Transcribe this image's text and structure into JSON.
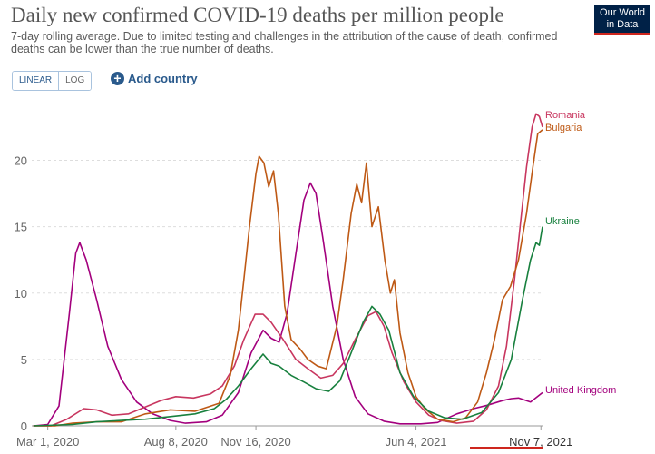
{
  "header": {
    "title": "Daily new confirmed COVID-19 deaths per million people",
    "subtitle": "7-day rolling average. Due to limited testing and challenges in the attribution of the cause of death, confirmed deaths can be lower than the true number of deaths.",
    "logo_line1": "Our World",
    "logo_line2": "in Data",
    "logo_color": "#002147",
    "logo_accent": "#ce261e"
  },
  "controls": {
    "linear_label": "LINEAR",
    "log_label": "LOG",
    "add_country_label": "Add country",
    "add_icon": "plus-circle-icon",
    "active_scale": "linear"
  },
  "chart_data": {
    "type": "line",
    "xlabel": "",
    "ylabel": "",
    "x_domain": [
      "2020-02-10",
      "2021-11-09"
    ],
    "ylim": [
      0,
      24
    ],
    "y_ticks": [
      0,
      5,
      10,
      15,
      20
    ],
    "x_ticks": [
      {
        "date": "2020-03-01",
        "label": "Mar 1, 2020"
      },
      {
        "date": "2020-08-08",
        "label": "Aug 8, 2020"
      },
      {
        "date": "2020-11-16",
        "label": "Nov 16, 2020"
      },
      {
        "date": "2021-06-04",
        "label": "Jun 4, 2021"
      },
      {
        "date": "2021-11-07",
        "label": "Nov 7, 2021"
      }
    ],
    "grid": "horizontal-dashed",
    "highlighted_tick": "Nov 7, 2021",
    "series": [
      {
        "name": "United Kingdom",
        "color": "#a3007d",
        "points": [
          [
            "2020-02-12",
            0
          ],
          [
            "2020-03-01",
            0.1
          ],
          [
            "2020-03-15",
            1.5
          ],
          [
            "2020-03-28",
            8.5
          ],
          [
            "2020-04-05",
            13
          ],
          [
            "2020-04-10",
            13.8
          ],
          [
            "2020-04-18",
            12.5
          ],
          [
            "2020-05-01",
            9.5
          ],
          [
            "2020-05-15",
            6
          ],
          [
            "2020-06-01",
            3.5
          ],
          [
            "2020-06-20",
            1.8
          ],
          [
            "2020-07-10",
            0.9
          ],
          [
            "2020-08-01",
            0.4
          ],
          [
            "2020-08-20",
            0.2
          ],
          [
            "2020-09-15",
            0.3
          ],
          [
            "2020-10-05",
            0.8
          ],
          [
            "2020-10-25",
            2.5
          ],
          [
            "2020-11-10",
            5.5
          ],
          [
            "2020-11-25",
            7.2
          ],
          [
            "2020-12-05",
            6.6
          ],
          [
            "2020-12-15",
            6.3
          ],
          [
            "2020-12-25",
            8.5
          ],
          [
            "2021-01-05",
            13
          ],
          [
            "2021-01-15",
            17
          ],
          [
            "2021-01-23",
            18.3
          ],
          [
            "2021-01-30",
            17.5
          ],
          [
            "2021-02-08",
            14
          ],
          [
            "2021-02-20",
            9
          ],
          [
            "2021-03-05",
            5
          ],
          [
            "2021-03-20",
            2.2
          ],
          [
            "2021-04-05",
            0.9
          ],
          [
            "2021-04-25",
            0.35
          ],
          [
            "2021-05-15",
            0.15
          ],
          [
            "2021-06-10",
            0.15
          ],
          [
            "2021-07-01",
            0.25
          ],
          [
            "2021-07-25",
            0.9
          ],
          [
            "2021-08-15",
            1.3
          ],
          [
            "2021-09-01",
            1.55
          ],
          [
            "2021-09-20",
            1.9
          ],
          [
            "2021-10-01",
            2.05
          ],
          [
            "2021-10-10",
            2.1
          ],
          [
            "2021-10-25",
            1.8
          ],
          [
            "2021-11-09",
            2.5
          ]
        ]
      },
      {
        "name": "Romania",
        "color": "#c8365f",
        "points": [
          [
            "2020-02-12",
            0
          ],
          [
            "2020-03-05",
            0
          ],
          [
            "2020-03-25",
            0.5
          ],
          [
            "2020-04-15",
            1.3
          ],
          [
            "2020-05-01",
            1.2
          ],
          [
            "2020-05-20",
            0.8
          ],
          [
            "2020-06-10",
            0.9
          ],
          [
            "2020-06-30",
            1.4
          ],
          [
            "2020-07-20",
            1.9
          ],
          [
            "2020-08-08",
            2.2
          ],
          [
            "2020-08-30",
            2.1
          ],
          [
            "2020-09-20",
            2.4
          ],
          [
            "2020-10-05",
            3.0
          ],
          [
            "2020-10-20",
            4.5
          ],
          [
            "2020-11-01",
            6.5
          ],
          [
            "2020-11-15",
            8.4
          ],
          [
            "2020-11-25",
            8.4
          ],
          [
            "2020-12-05",
            7.8
          ],
          [
            "2020-12-20",
            6.5
          ],
          [
            "2021-01-05",
            5
          ],
          [
            "2021-01-20",
            4.3
          ],
          [
            "2021-02-05",
            3.6
          ],
          [
            "2021-02-20",
            3.8
          ],
          [
            "2021-03-05",
            4.7
          ],
          [
            "2021-03-20",
            6.5
          ],
          [
            "2021-04-05",
            8.3
          ],
          [
            "2021-04-15",
            8.6
          ],
          [
            "2021-04-25",
            7.5
          ],
          [
            "2021-05-05",
            5.5
          ],
          [
            "2021-05-20",
            3.3
          ],
          [
            "2021-06-04",
            1.8
          ],
          [
            "2021-06-20",
            0.8
          ],
          [
            "2021-07-05",
            0.4
          ],
          [
            "2021-07-25",
            0.2
          ],
          [
            "2021-08-15",
            0.35
          ],
          [
            "2021-08-31",
            1.2
          ],
          [
            "2021-09-15",
            3.0
          ],
          [
            "2021-09-25",
            6.0
          ],
          [
            "2021-10-05",
            11
          ],
          [
            "2021-10-12",
            15
          ],
          [
            "2021-10-20",
            19.5
          ],
          [
            "2021-10-27",
            22.5
          ],
          [
            "2021-11-01",
            23.5
          ],
          [
            "2021-11-05",
            23.3
          ],
          [
            "2021-11-09",
            22.5
          ]
        ]
      },
      {
        "name": "Bulgaria",
        "color": "#be5915",
        "points": [
          [
            "2020-02-12",
            0
          ],
          [
            "2020-03-10",
            0
          ],
          [
            "2020-04-01",
            0.2
          ],
          [
            "2020-05-01",
            0.3
          ],
          [
            "2020-06-01",
            0.3
          ],
          [
            "2020-07-01",
            0.9
          ],
          [
            "2020-08-01",
            1.2
          ],
          [
            "2020-09-01",
            1.1
          ],
          [
            "2020-10-01",
            1.7
          ],
          [
            "2020-10-15",
            3.8
          ],
          [
            "2020-10-25",
            7.2
          ],
          [
            "2020-11-01",
            11
          ],
          [
            "2020-11-08",
            15
          ],
          [
            "2020-11-16",
            19
          ],
          [
            "2020-11-20",
            20.3
          ],
          [
            "2020-11-26",
            19.8
          ],
          [
            "2020-12-02",
            18
          ],
          [
            "2020-12-08",
            19.2
          ],
          [
            "2020-12-14",
            16
          ],
          [
            "2020-12-22",
            9
          ],
          [
            "2020-12-30",
            6.5
          ],
          [
            "2021-01-10",
            5.8
          ],
          [
            "2021-01-20",
            5.0
          ],
          [
            "2021-02-01",
            4.5
          ],
          [
            "2021-02-12",
            4.3
          ],
          [
            "2021-02-25",
            7.5
          ],
          [
            "2021-03-05",
            11
          ],
          [
            "2021-03-15",
            16
          ],
          [
            "2021-03-22",
            18.2
          ],
          [
            "2021-03-28",
            16.8
          ],
          [
            "2021-04-03",
            19.8
          ],
          [
            "2021-04-10",
            15
          ],
          [
            "2021-04-18",
            16.5
          ],
          [
            "2021-04-26",
            12.5
          ],
          [
            "2021-05-03",
            10
          ],
          [
            "2021-05-08",
            11
          ],
          [
            "2021-05-15",
            7
          ],
          [
            "2021-05-25",
            4.0
          ],
          [
            "2021-06-04",
            2.2
          ],
          [
            "2021-06-15",
            1.3
          ],
          [
            "2021-07-01",
            0.5
          ],
          [
            "2021-07-20",
            0.3
          ],
          [
            "2021-08-05",
            0.6
          ],
          [
            "2021-08-20",
            1.8
          ],
          [
            "2021-08-31",
            4.0
          ],
          [
            "2021-09-10",
            6.5
          ],
          [
            "2021-09-20",
            9.5
          ],
          [
            "2021-09-30",
            10.5
          ],
          [
            "2021-10-10",
            12.5
          ],
          [
            "2021-10-20",
            16
          ],
          [
            "2021-10-28",
            19.5
          ],
          [
            "2021-11-03",
            22
          ],
          [
            "2021-11-09",
            22.3
          ]
        ]
      },
      {
        "name": "Ukraine",
        "color": "#18803e",
        "points": [
          [
            "2020-02-12",
            0
          ],
          [
            "2020-04-01",
            0.1
          ],
          [
            "2020-05-01",
            0.3
          ],
          [
            "2020-06-01",
            0.4
          ],
          [
            "2020-07-01",
            0.5
          ],
          [
            "2020-08-01",
            0.7
          ],
          [
            "2020-09-01",
            0.9
          ],
          [
            "2020-09-25",
            1.3
          ],
          [
            "2020-10-10",
            2.0
          ],
          [
            "2020-10-25",
            3.0
          ],
          [
            "2020-11-10",
            4.3
          ],
          [
            "2020-11-25",
            5.4
          ],
          [
            "2020-12-05",
            4.7
          ],
          [
            "2020-12-15",
            4.5
          ],
          [
            "2020-12-30",
            3.8
          ],
          [
            "2021-01-15",
            3.3
          ],
          [
            "2021-01-30",
            2.8
          ],
          [
            "2021-02-15",
            2.6
          ],
          [
            "2021-03-01",
            3.4
          ],
          [
            "2021-03-15",
            5.5
          ],
          [
            "2021-03-30",
            7.8
          ],
          [
            "2021-04-10",
            9.0
          ],
          [
            "2021-04-20",
            8.4
          ],
          [
            "2021-05-01",
            7.2
          ],
          [
            "2021-05-15",
            4.0
          ],
          [
            "2021-06-01",
            2.2
          ],
          [
            "2021-06-20",
            1.1
          ],
          [
            "2021-07-10",
            0.6
          ],
          [
            "2021-08-01",
            0.5
          ],
          [
            "2021-08-25",
            1.0
          ],
          [
            "2021-09-15",
            2.5
          ],
          [
            "2021-10-01",
            5.0
          ],
          [
            "2021-10-15",
            9.5
          ],
          [
            "2021-10-25",
            12.5
          ],
          [
            "2021-11-01",
            13.8
          ],
          [
            "2021-11-05",
            13.6
          ],
          [
            "2021-11-09",
            15.0
          ]
        ]
      }
    ]
  }
}
